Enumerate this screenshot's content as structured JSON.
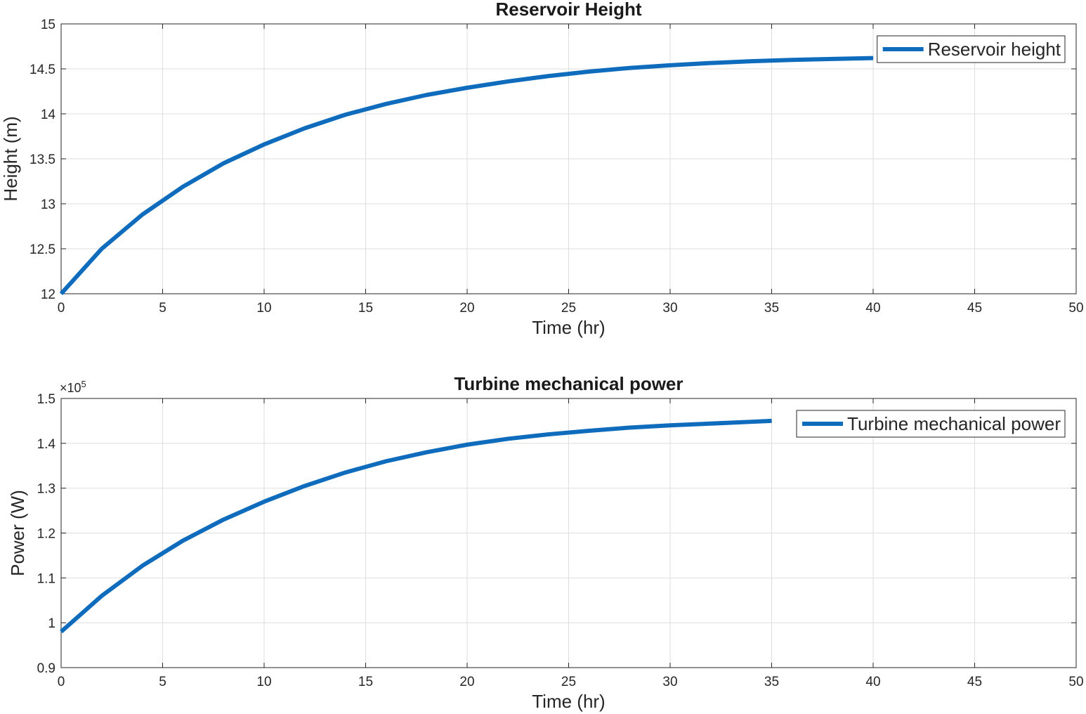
{
  "chart_data": [
    {
      "type": "line",
      "title": "Reservoir Height",
      "xlabel": "Time (hr)",
      "ylabel": "Height (m)",
      "xlim": [
        0,
        50
      ],
      "ylim": [
        12,
        15
      ],
      "xticks": [
        "0",
        "5",
        "10",
        "15",
        "20",
        "25",
        "30",
        "35",
        "40",
        "45",
        "50"
      ],
      "yticks": [
        "12",
        "12.5",
        "13",
        "13.5",
        "14",
        "14.5",
        "15"
      ],
      "grid": true,
      "legend_position": "top-right",
      "exponent_label": "",
      "series": [
        {
          "name": "Reservoir height",
          "color": "#0f6cbd",
          "x": [
            0,
            2,
            4,
            6,
            8,
            10,
            12,
            14,
            16,
            18,
            20,
            22,
            24,
            26,
            28,
            30,
            32,
            34,
            36,
            38,
            40
          ],
          "y": [
            12.0,
            12.5,
            12.88,
            13.19,
            13.45,
            13.66,
            13.84,
            13.99,
            14.11,
            14.21,
            14.29,
            14.36,
            14.42,
            14.47,
            14.51,
            14.54,
            14.565,
            14.585,
            14.6,
            14.61,
            14.62
          ]
        }
      ]
    },
    {
      "type": "line",
      "title": "Turbine mechanical power",
      "xlabel": "Time (hr)",
      "ylabel": "Power (W)",
      "xlim": [
        0,
        50
      ],
      "ylim": [
        0.9,
        1.5
      ],
      "xticks": [
        "0",
        "5",
        "10",
        "15",
        "20",
        "25",
        "30",
        "35",
        "40",
        "45",
        "50"
      ],
      "yticks": [
        "0.9",
        "1",
        "1.1",
        "1.2",
        "1.3",
        "1.4",
        "1.5"
      ],
      "grid": true,
      "legend_position": "top-right",
      "exponent_label": "×10",
      "exponent_power": "5",
      "series": [
        {
          "name": "Turbine mechanical power",
          "color": "#0f6cbd",
          "x": [
            0,
            2,
            4,
            6,
            8,
            10,
            12,
            14,
            16,
            18,
            20,
            22,
            24,
            26,
            28,
            30,
            32,
            34,
            35
          ],
          "y": [
            0.98,
            1.06,
            1.127,
            1.183,
            1.23,
            1.27,
            1.305,
            1.335,
            1.36,
            1.38,
            1.397,
            1.41,
            1.42,
            1.428,
            1.435,
            1.44,
            1.444,
            1.448,
            1.45
          ]
        }
      ]
    }
  ]
}
